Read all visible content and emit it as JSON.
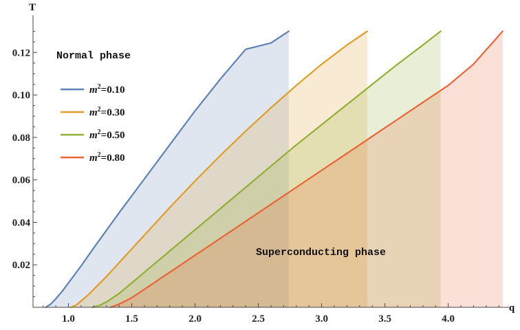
{
  "chart_data": {
    "type": "area",
    "xlabel": "q",
    "ylabel": "T",
    "xlim": [
      0.72,
      4.48
    ],
    "ylim": [
      0.0,
      0.135
    ],
    "x_ticks": [
      1.0,
      1.5,
      2.0,
      2.5,
      3.0,
      3.5,
      4.0
    ],
    "x_tick_labels": [
      "1.0",
      "1.5",
      "2.0",
      "2.5",
      "3.0",
      "3.5",
      "4.0"
    ],
    "y_ticks": [
      0.02,
      0.04,
      0.06,
      0.08,
      0.1,
      0.12
    ],
    "y_tick_labels": [
      "0.02",
      "0.04",
      "0.06",
      "0.08",
      "0.10",
      "0.12"
    ],
    "grid": false,
    "legend": {
      "position": "left",
      "prefix": "m",
      "exponent": "2"
    },
    "annotations": [
      {
        "text": "Normal phase",
        "region": "upper-left"
      },
      {
        "text": "Superconducting phase",
        "region": "lower-right"
      }
    ],
    "series": [
      {
        "name": "m²=0.10",
        "legend_value": "=0.10",
        "color": "#5e81b5",
        "fill": "#5e81b5",
        "x": [
          0.82,
          0.86,
          0.9,
          0.95,
          1.0,
          1.1,
          1.2,
          1.4,
          1.6,
          1.8,
          2.0,
          2.2,
          2.4,
          2.6,
          2.74
        ],
        "y": [
          0.0,
          0.0015,
          0.004,
          0.0075,
          0.0115,
          0.0195,
          0.028,
          0.0445,
          0.0605,
          0.0765,
          0.0925,
          0.1075,
          0.1215,
          0.1245,
          0.13
        ]
      },
      {
        "name": "m²=0.30",
        "legend_value": "=0.30",
        "color": "#e19c24",
        "fill": "#e19c24",
        "x": [
          1.02,
          1.06,
          1.1,
          1.15,
          1.2,
          1.3,
          1.4,
          1.6,
          1.8,
          2.0,
          2.2,
          2.4,
          2.6,
          2.8,
          3.0,
          3.2,
          3.36
        ],
        "y": [
          0.0,
          0.001,
          0.003,
          0.0055,
          0.0085,
          0.0145,
          0.021,
          0.034,
          0.047,
          0.0595,
          0.0715,
          0.083,
          0.094,
          0.1045,
          0.1145,
          0.1235,
          0.13
        ]
      },
      {
        "name": "m²=0.50",
        "legend_value": "=0.50",
        "color": "#8fb032",
        "fill": "#8fb032",
        "x": [
          1.19,
          1.25,
          1.3,
          1.4,
          1.5,
          1.6,
          1.8,
          2.0,
          2.2,
          2.4,
          2.6,
          2.8,
          3.0,
          3.2,
          3.4,
          3.6,
          3.8,
          3.94
        ],
        "y": [
          0.0,
          0.001,
          0.0025,
          0.0065,
          0.0115,
          0.0165,
          0.0265,
          0.0365,
          0.0465,
          0.0565,
          0.0665,
          0.0765,
          0.086,
          0.0955,
          0.105,
          0.1145,
          0.1235,
          0.13
        ]
      },
      {
        "name": "m²=0.80",
        "legend_value": "=0.80",
        "color": "#eb6235",
        "fill": "#eb6235",
        "x": [
          1.33,
          1.4,
          1.5,
          1.6,
          1.7,
          1.8,
          2.0,
          2.2,
          2.4,
          2.6,
          2.8,
          3.0,
          3.2,
          3.4,
          3.6,
          3.8,
          4.0,
          4.2,
          4.43
        ],
        "y": [
          0.0,
          0.0015,
          0.0045,
          0.0085,
          0.0125,
          0.0165,
          0.0245,
          0.0325,
          0.0405,
          0.0485,
          0.0565,
          0.0645,
          0.0725,
          0.0805,
          0.0885,
          0.0965,
          0.1045,
          0.1145,
          0.13
        ]
      }
    ]
  }
}
